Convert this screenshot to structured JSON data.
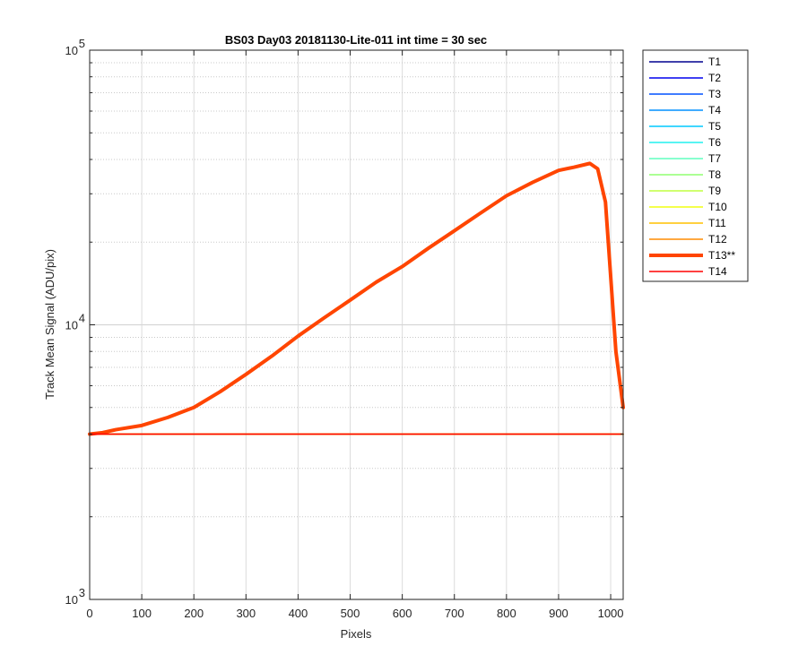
{
  "chart_data": {
    "type": "line",
    "title": "BS03 Day03 20181130-Lite-011 int time = 30 sec",
    "xlabel": "Pixels",
    "ylabel": "Track Mean Signal (ADU/pix)",
    "xlim": [
      0,
      1024
    ],
    "ylim": [
      1000,
      100000
    ],
    "yscale": "log",
    "grid": true,
    "legend_position": "outside-top-right",
    "xticks": [
      0,
      100,
      200,
      300,
      400,
      500,
      600,
      700,
      800,
      900,
      1000
    ],
    "xtick_labels": [
      "0",
      "100",
      "200",
      "300",
      "400",
      "500",
      "600",
      "700",
      "800",
      "900",
      "1000"
    ],
    "yticks": [
      1000,
      10000,
      100000
    ],
    "ytick_labels": [
      {
        "base": "10",
        "exp": "3"
      },
      {
        "base": "10",
        "exp": "4"
      },
      {
        "base": "10",
        "exp": "5"
      }
    ],
    "series": [
      {
        "name": "T1",
        "color": "#00008f",
        "width": 1.5,
        "x": [
          0,
          1024
        ],
        "y": [
          4000,
          4000
        ]
      },
      {
        "name": "T2",
        "color": "#0000ee",
        "width": 1.5,
        "x": [
          0,
          1024
        ],
        "y": [
          4000,
          4000
        ]
      },
      {
        "name": "T3",
        "color": "#0050ff",
        "width": 1.5,
        "x": [
          0,
          1024
        ],
        "y": [
          4000,
          4000
        ]
      },
      {
        "name": "T4",
        "color": "#0090ff",
        "width": 1.5,
        "x": [
          0,
          1024
        ],
        "y": [
          4000,
          4000
        ]
      },
      {
        "name": "T5",
        "color": "#00c8ff",
        "width": 1.5,
        "x": [
          0,
          1024
        ],
        "y": [
          4000,
          4000
        ]
      },
      {
        "name": "T6",
        "color": "#20f0ef",
        "width": 1.5,
        "x": [
          0,
          1024
        ],
        "y": [
          4000,
          4000
        ]
      },
      {
        "name": "T7",
        "color": "#60ffbf",
        "width": 1.5,
        "x": [
          0,
          1024
        ],
        "y": [
          4000,
          4000
        ]
      },
      {
        "name": "T8",
        "color": "#90ff70",
        "width": 1.5,
        "x": [
          0,
          1024
        ],
        "y": [
          4000,
          4000
        ]
      },
      {
        "name": "T9",
        "color": "#c0ff40",
        "width": 1.5,
        "x": [
          0,
          1024
        ],
        "y": [
          4000,
          4000
        ]
      },
      {
        "name": "T10",
        "color": "#f0ff10",
        "width": 1.5,
        "x": [
          0,
          1024
        ],
        "y": [
          4000,
          4000
        ]
      },
      {
        "name": "T11",
        "color": "#ffc000",
        "width": 1.5,
        "x": [
          0,
          1024
        ],
        "y": [
          4000,
          4000
        ]
      },
      {
        "name": "T12",
        "color": "#ff8c00",
        "width": 1.5,
        "x": [
          0,
          1024
        ],
        "y": [
          4000,
          4000
        ]
      },
      {
        "name": "T13**",
        "color": "#ff4500",
        "width": 4,
        "x": [
          0,
          25,
          50,
          100,
          150,
          200,
          250,
          300,
          350,
          400,
          450,
          500,
          550,
          600,
          650,
          700,
          750,
          800,
          850,
          900,
          930,
          960,
          975,
          990,
          1000,
          1010,
          1024
        ],
        "y": [
          4000,
          4050,
          4150,
          4300,
          4600,
          5000,
          5700,
          6600,
          7700,
          9100,
          10600,
          12300,
          14300,
          16300,
          19000,
          22000,
          25500,
          29500,
          33000,
          36500,
          37500,
          38700,
          37000,
          28000,
          15000,
          8000,
          5000
        ]
      },
      {
        "name": "T14",
        "color": "#ff0000",
        "width": 1.5,
        "x": [
          0,
          1024
        ],
        "y": [
          4000,
          4000
        ]
      }
    ]
  }
}
